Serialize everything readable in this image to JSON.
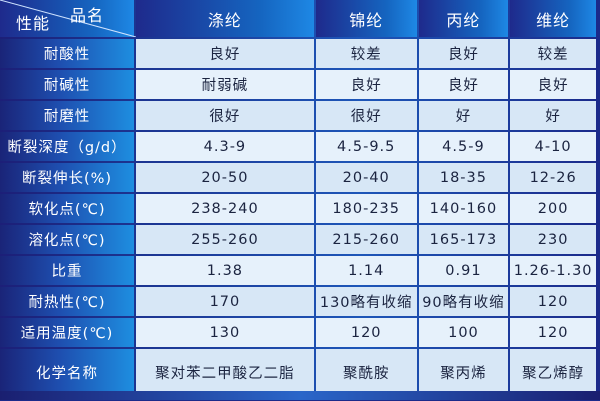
{
  "header": {
    "row_label": "性能",
    "col_label": "品名",
    "columns": [
      "涤纶",
      "锦纶",
      "丙纶",
      "维纶"
    ]
  },
  "rows": [
    {
      "label": "耐酸性",
      "values": [
        "良好",
        "较差",
        "良好",
        "较差"
      ]
    },
    {
      "label": "耐碱性",
      "values": [
        "耐弱碱",
        "良好",
        "良好",
        "良好"
      ]
    },
    {
      "label": "耐磨性",
      "values": [
        "很好",
        "很好",
        "好",
        "好"
      ]
    },
    {
      "label": "断裂深度（g/d）",
      "values": [
        "4.3-9",
        "4.5-9.5",
        "4.5-9",
        "4-10"
      ]
    },
    {
      "label": "断裂伸长(%)",
      "values": [
        "20-50",
        "20-40",
        "18-35",
        "12-26"
      ]
    },
    {
      "label": "软化点(℃)",
      "values": [
        "238-240",
        "180-235",
        "140-160",
        "200"
      ]
    },
    {
      "label": "溶化点(℃)",
      "values": [
        "255-260",
        "215-260",
        "165-173",
        "230"
      ]
    },
    {
      "label": "比重",
      "values": [
        "1.38",
        "1.14",
        "0.91",
        "1.26-1.30"
      ]
    },
    {
      "label": "耐热性(℃)",
      "values": [
        "170",
        "130略有收缩",
        "90略有收缩",
        "120"
      ]
    },
    {
      "label": "适用温度(℃)",
      "values": [
        "130",
        "120",
        "100",
        "120"
      ]
    },
    {
      "label": "化学名称",
      "values": [
        "聚对苯二甲酸乙二脂",
        "聚酰胺",
        "聚丙烯",
        "聚乙烯醇"
      ]
    }
  ]
}
